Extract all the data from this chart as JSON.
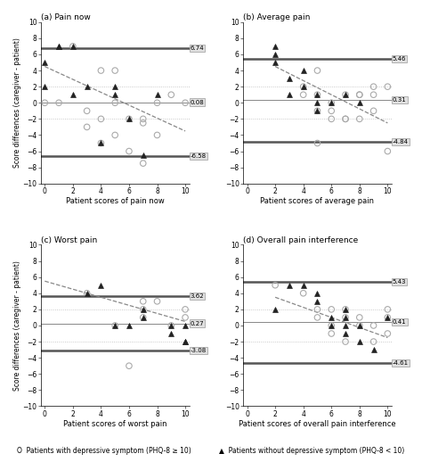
{
  "panels": [
    {
      "title": "(a) Pain now",
      "xlabel": "Patient scores of pain now",
      "mean": 0.08,
      "upper_loa": 6.74,
      "lower_loa": -6.58,
      "upper_label": "6.74",
      "mean_label": "0.08",
      "lower_label": "-6.58",
      "circles": [
        [
          0,
          0
        ],
        [
          1,
          0
        ],
        [
          2,
          7
        ],
        [
          3,
          -1
        ],
        [
          3,
          -3
        ],
        [
          4,
          4
        ],
        [
          4,
          -2
        ],
        [
          4,
          -5
        ],
        [
          5,
          4
        ],
        [
          5,
          0
        ],
        [
          5,
          -4
        ],
        [
          6,
          -2
        ],
        [
          6,
          -6
        ],
        [
          7,
          -2
        ],
        [
          7,
          -2.5
        ],
        [
          7,
          -7.5
        ],
        [
          8,
          0
        ],
        [
          8,
          -4
        ],
        [
          9,
          1
        ],
        [
          10,
          0
        ]
      ],
      "triangles": [
        [
          0,
          5
        ],
        [
          0,
          2
        ],
        [
          1,
          7
        ],
        [
          1,
          7
        ],
        [
          2,
          7
        ],
        [
          2,
          1
        ],
        [
          3,
          2
        ],
        [
          4,
          -5
        ],
        [
          5,
          2
        ],
        [
          5,
          1
        ],
        [
          6,
          -2
        ],
        [
          7,
          -6.5
        ],
        [
          8,
          1
        ]
      ],
      "trend_x": [
        0,
        10
      ],
      "trend_y": [
        4.5,
        -3.5
      ]
    },
    {
      "title": "(b) Average pain",
      "xlabel": "Patient scores of average pain",
      "mean": 0.31,
      "upper_loa": 5.46,
      "lower_loa": -4.84,
      "upper_label": "5.46",
      "mean_label": "0.31",
      "lower_label": "-4.84",
      "circles": [
        [
          4,
          2
        ],
        [
          4,
          1
        ],
        [
          5,
          -5
        ],
        [
          5,
          4
        ],
        [
          5,
          1
        ],
        [
          5,
          -1
        ],
        [
          6,
          0
        ],
        [
          6,
          -1
        ],
        [
          6,
          -2
        ],
        [
          7,
          1
        ],
        [
          7,
          -2
        ],
        [
          7,
          -2
        ],
        [
          8,
          1
        ],
        [
          8,
          -2
        ],
        [
          8,
          1
        ],
        [
          9,
          1
        ],
        [
          9,
          2
        ],
        [
          9,
          -1
        ],
        [
          10,
          2
        ],
        [
          10,
          -6
        ]
      ],
      "triangles": [
        [
          2,
          7
        ],
        [
          2,
          6
        ],
        [
          2,
          5
        ],
        [
          3,
          3
        ],
        [
          3,
          1
        ],
        [
          4,
          4
        ],
        [
          4,
          2
        ],
        [
          5,
          1
        ],
        [
          5,
          0
        ],
        [
          5,
          -1
        ],
        [
          6,
          0
        ],
        [
          7,
          1
        ],
        [
          8,
          0
        ]
      ],
      "trend_x": [
        2,
        10
      ],
      "trend_y": [
        4.5,
        -2.5
      ]
    },
    {
      "title": "(c) Worst pain",
      "xlabel": "Patient scores of worst pain",
      "mean": 0.27,
      "upper_loa": 3.62,
      "lower_loa": -3.08,
      "upper_label": "3.62",
      "mean_label": "0.27",
      "lower_label": "-3.08",
      "circles": [
        [
          3,
          4
        ],
        [
          5,
          0
        ],
        [
          6,
          -5
        ],
        [
          7,
          3
        ],
        [
          7,
          2
        ],
        [
          7,
          1
        ],
        [
          8,
          3
        ],
        [
          9,
          0
        ],
        [
          10,
          2
        ],
        [
          10,
          1
        ]
      ],
      "triangles": [
        [
          3,
          4
        ],
        [
          4,
          5
        ],
        [
          5,
          0
        ],
        [
          6,
          0
        ],
        [
          7,
          2
        ],
        [
          7,
          1
        ],
        [
          9,
          0
        ],
        [
          9,
          -1
        ],
        [
          10,
          0
        ],
        [
          10,
          -2
        ],
        [
          10,
          -2
        ]
      ],
      "trend_x": [
        0,
        10
      ],
      "trend_y": [
        5.5,
        0.5
      ]
    },
    {
      "title": "(d) Overall pain interference",
      "xlabel": "Patient scores of overall pain interference",
      "mean": 0.41,
      "upper_loa": 5.43,
      "lower_loa": -4.61,
      "upper_label": "5.43",
      "mean_label": "0.41",
      "lower_label": "-4.61",
      "circles": [
        [
          2,
          5
        ],
        [
          4,
          4
        ],
        [
          5,
          2
        ],
        [
          5,
          1
        ],
        [
          6,
          2
        ],
        [
          6,
          0
        ],
        [
          6,
          -1
        ],
        [
          7,
          2
        ],
        [
          7,
          1
        ],
        [
          7,
          -2
        ],
        [
          8,
          1
        ],
        [
          8,
          0
        ],
        [
          9,
          0
        ],
        [
          9,
          -2
        ],
        [
          10,
          2
        ],
        [
          10,
          1
        ],
        [
          10,
          -1
        ]
      ],
      "triangles": [
        [
          2,
          2
        ],
        [
          3,
          5
        ],
        [
          4,
          5
        ],
        [
          5,
          4
        ],
        [
          5,
          3
        ],
        [
          6,
          1
        ],
        [
          6,
          0
        ],
        [
          7,
          2
        ],
        [
          7,
          1
        ],
        [
          7,
          0
        ],
        [
          7,
          -1
        ],
        [
          8,
          0
        ],
        [
          8,
          -2
        ],
        [
          9,
          -3
        ],
        [
          10,
          1
        ]
      ],
      "trend_x": [
        2,
        10
      ],
      "trend_y": [
        3.5,
        -1.5
      ]
    }
  ],
  "ylabel": "Score differences (caregiver - patient)",
  "ylim": [
    -10,
    10
  ],
  "xlim": [
    -0.3,
    10.3
  ],
  "yticks": [
    -10,
    -8,
    -6,
    -4,
    -2,
    0,
    2,
    4,
    6,
    8,
    10
  ],
  "xticks": [
    0,
    2,
    4,
    6,
    8,
    10
  ],
  "loa_line_color": "#555555",
  "mean_line_color": "#888888",
  "dotted_line_color": "#bbbbbb",
  "trend_color": "#888888",
  "circle_edge_color": "#aaaaaa",
  "triangle_color": "#222222",
  "label_bg_color": "#e0e0e0",
  "label_edge_color": "#999999",
  "legend_circle_text": "O  Patients with depressive symptom (PHQ-8 ≥ 10)",
  "legend_triangle_text": "▲  Patients without depressive symptom (PHQ-8 < 10)"
}
